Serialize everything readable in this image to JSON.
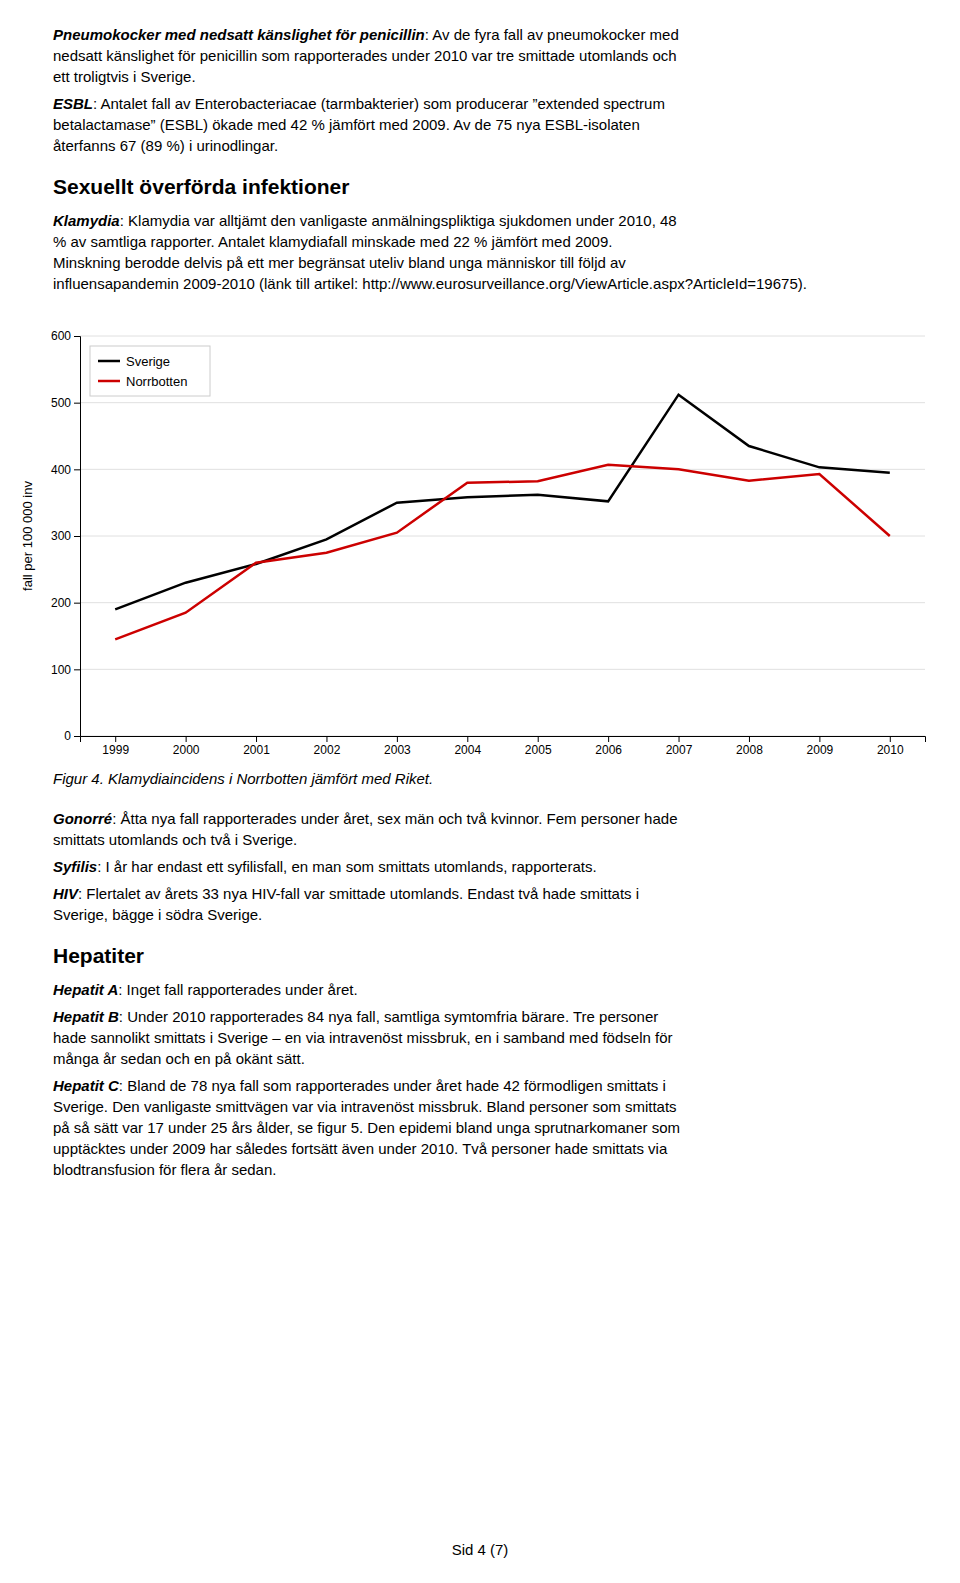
{
  "text_before": [
    {
      "lead": "Pneumokocker med nedsatt känslighet för penicillin",
      "lines": [
        ": Av de fyra fall av pneumokocker med",
        "nedsatt känslighet för penicillin som rapporterades under 2010 var tre smittade utomlands och",
        "ett troligtvis i Sverige."
      ]
    },
    {
      "lead": "ESBL",
      "lines": [
        ": Antalet fall av Enterobacteriacae (tarmbakterier) som producerar ”extended spectrum",
        "betalactamase” (ESBL) ökade med 42 % jämfört med 2009. Av de 75 nya ESBL-isolaten",
        "återfanns 67 (89 %) i urinodlingar."
      ]
    },
    {
      "heading": "Sexuellt överförda infektioner"
    },
    {
      "lead": "Klamydia",
      "lines": [
        ": Klamydia var alltjämt den vanligaste anmälningspliktiga sjukdomen under 2010, 48",
        "% av samtliga rapporter. Antalet klamydiafall minskade med 22 % jämfört med 2009.",
        "Minskning berodde delvis på ett mer begränsat uteliv bland unga människor till följd av",
        "influensapandemin 2009-2010 (länk till artikel: http://www.eurosurveillance.org/ViewArticle.aspx?ArticleId=19675)."
      ]
    }
  ],
  "chart_data": {
    "type": "line",
    "title": "Figur 4. Klamydiaincidens i Norrbotten jämfört med Riket.",
    "ylabel": "fall per 100 000 inv",
    "x": [
      1999,
      2000,
      2001,
      2002,
      2003,
      2004,
      2005,
      2006,
      2007,
      2008,
      2009,
      2010
    ],
    "series": [
      {
        "name": "Sverige",
        "color": "#000000",
        "values": [
          190,
          230,
          258,
          295,
          350,
          358,
          362,
          352,
          512,
          435,
          403,
          395
        ]
      },
      {
        "name": "Norrbotten",
        "color": "#cc0000",
        "values": [
          145,
          185,
          260,
          275,
          305,
          380,
          382,
          407,
          400,
          383,
          393,
          300
        ]
      }
    ],
    "xlim": [
      1998.5,
      2010.5
    ],
    "xticks": [
      1999,
      2000,
      2001,
      2002,
      2003,
      2004,
      2005,
      2006,
      2007,
      2008,
      2009,
      2010
    ],
    "ylim": [
      0,
      600
    ],
    "yticks": [
      0,
      100,
      200,
      300,
      400,
      500,
      600
    ],
    "grid": true,
    "legend": "upper left"
  },
  "text_after": [
    {
      "lead": "Gonorré",
      "lines": [
        ": Åtta nya fall rapporterades under året, sex män och två kvinnor. Fem personer hade",
        "smittats utomlands och två i Sverige."
      ]
    },
    {
      "lead": "Syfilis",
      "lines": [
        ": I år har endast ett syfilisfall, en man som smittats utomlands, rapporterats."
      ]
    },
    {
      "lead": "HIV",
      "lines": [
        ": Flertalet av årets 33 nya HIV-fall var smittade utomlands. Endast två hade smittats i",
        "Sverige, bägge i södra Sverige."
      ]
    },
    {
      "heading": "Hepatiter"
    },
    {
      "lead": "Hepatit A",
      "lines": [
        ": Inget fall rapporterades under året."
      ]
    },
    {
      "lead": "Hepatit B",
      "lines": [
        ": Under 2010 rapporterades 84 nya fall, samtliga symtomfria bärare. Tre personer",
        "hade sannolikt smittats i Sverige – en via intravenöst missbruk, en i samband med födseln för",
        "många år sedan och en på okänt sätt."
      ]
    },
    {
      "lead": "Hepatit C",
      "lines": [
        ": Bland de 78 nya fall som rapporterades under året hade 42 förmodligen smittats i",
        "Sverige. Den vanligaste smittvägen var via intravenöst missbruk. Bland personer som smittats",
        "på så sätt var 17 under 25 års ålder, se figur 5. Den epidemi bland unga sprutnarkomaner som",
        "upptäcktes under 2009 har således fortsätt även under 2010. Två personer hade smittats via",
        "blodtransfusion för flera år sedan."
      ]
    }
  ],
  "footer": "Sid 4 (7)"
}
